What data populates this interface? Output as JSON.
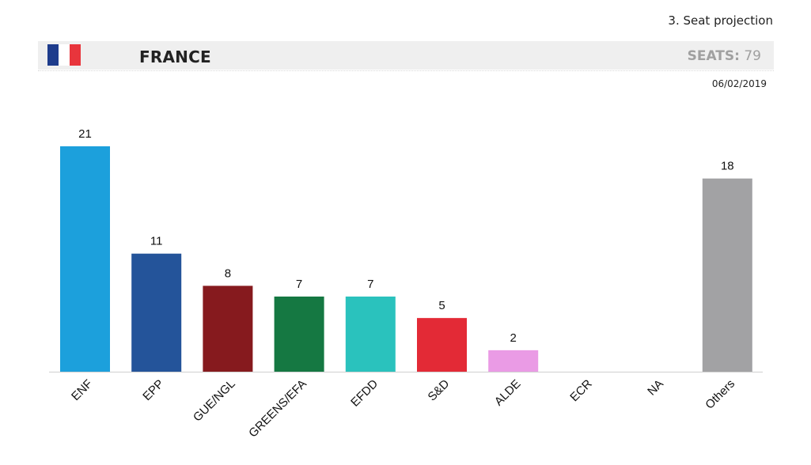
{
  "header": {
    "section_label": "3. Seat projection",
    "country": "FRANCE",
    "seats_label": "SEATS:",
    "seats_value": "79",
    "date": "06/02/2019",
    "flag_colors": [
      "#1e3c8c",
      "#ffffff",
      "#e8353c"
    ]
  },
  "chart_data": {
    "type": "bar",
    "categories": [
      "ENF",
      "EPP",
      "GUE/NGL",
      "GREENS/EFA",
      "EFDD",
      "S&D",
      "ALDE",
      "ECR",
      "NA",
      "Others"
    ],
    "values": [
      21,
      11,
      8,
      7,
      7,
      5,
      2,
      0,
      0,
      18
    ],
    "value_labels": [
      "21",
      "11",
      "8",
      "7",
      "7",
      "5",
      "2",
      "",
      "",
      "18"
    ],
    "colors": [
      "#1ca0dc",
      "#24549a",
      "#861a1e",
      "#157842",
      "#2ac2bd",
      "#e32a36",
      "#ea9be5",
      "#ffffff",
      "#ffffff",
      "#a2a2a4"
    ],
    "ylim": [
      0,
      21
    ],
    "grid": false,
    "title": "",
    "xlabel": "",
    "ylabel": ""
  }
}
